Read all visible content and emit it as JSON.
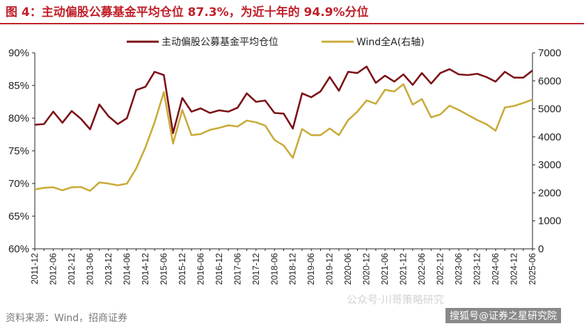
{
  "title": "图 4：主动偏股公募基金平均仓位 87.3%，为近十年的 94.9%分位",
  "source": "资料来源：Wind，招商证券",
  "watermark": {
    "channel": "公众号·川哥策略研究",
    "account": "搜狐号@证券之星研究院"
  },
  "colors": {
    "title": "#c0202a",
    "series_position": "#7b1218",
    "series_wind": "#c9ab3a"
  },
  "chart_data": {
    "type": "line",
    "categories": [
      "2011-12",
      "2012-06",
      "2012-12",
      "2013-06",
      "2013-12",
      "2014-06",
      "2014-12",
      "2015-06",
      "2015-12",
      "2016-06",
      "2016-12",
      "2017-06",
      "2017-12",
      "2018-06",
      "2018-12",
      "2019-06",
      "2019-12",
      "2020-06",
      "2020-12",
      "2021-06",
      "2021-12",
      "2022-06",
      "2022-12",
      "2023-06",
      "2023-12",
      "2024-06",
      "2024-12",
      "2025-06"
    ],
    "x": [
      "2011-12",
      "2012-03",
      "2012-06",
      "2012-09",
      "2012-12",
      "2013-03",
      "2013-06",
      "2013-09",
      "2013-12",
      "2014-03",
      "2014-06",
      "2014-09",
      "2014-12",
      "2015-03",
      "2015-06",
      "2015-09",
      "2015-12",
      "2016-03",
      "2016-06",
      "2016-09",
      "2016-12",
      "2017-03",
      "2017-06",
      "2017-09",
      "2017-12",
      "2018-03",
      "2018-06",
      "2018-09",
      "2018-12",
      "2019-03",
      "2019-06",
      "2019-09",
      "2019-12",
      "2020-03",
      "2020-06",
      "2020-09",
      "2020-12",
      "2021-03",
      "2021-06",
      "2021-09",
      "2021-12",
      "2022-03",
      "2022-06",
      "2022-09",
      "2022-12",
      "2023-03",
      "2023-06",
      "2023-09",
      "2023-12",
      "2024-03",
      "2024-06",
      "2024-09",
      "2024-12",
      "2025-03",
      "2025-06"
    ],
    "series": [
      {
        "name": "主动偏股公募基金平均仓位",
        "axis": "left",
        "values": [
          79.0,
          79.1,
          81.0,
          79.3,
          81.1,
          79.9,
          78.3,
          82.1,
          80.3,
          79.1,
          80.0,
          84.3,
          84.8,
          87.1,
          86.6,
          77.7,
          83.1,
          81.0,
          81.5,
          80.8,
          81.2,
          81.0,
          81.6,
          83.8,
          82.5,
          82.7,
          80.8,
          80.7,
          78.4,
          83.8,
          83.2,
          84.1,
          86.3,
          84.2,
          87.1,
          86.9,
          87.9,
          85.4,
          86.5,
          85.6,
          86.7,
          85.1,
          86.9,
          85.3,
          86.9,
          87.5,
          86.7,
          86.6,
          86.8,
          86.3,
          85.6,
          87.1,
          86.2,
          86.2,
          87.3
        ]
      },
      {
        "name": "Wind全A(右轴)",
        "axis": "right",
        "values": [
          2120,
          2180,
          2200,
          2090,
          2200,
          2210,
          2070,
          2370,
          2330,
          2270,
          2330,
          2870,
          3620,
          4520,
          5600,
          3760,
          4960,
          4060,
          4100,
          4250,
          4320,
          4410,
          4370,
          4580,
          4520,
          4400,
          3890,
          3690,
          3250,
          4280,
          4060,
          4060,
          4300,
          4060,
          4600,
          4900,
          5300,
          5180,
          5680,
          5620,
          5880,
          5150,
          5350,
          4700,
          4800,
          5110,
          4960,
          4780,
          4600,
          4450,
          4220,
          5050,
          5100,
          5210,
          5330
        ]
      }
    ],
    "y_left": {
      "ticks": [
        "60%",
        "65%",
        "70%",
        "75%",
        "80%",
        "85%",
        "90%"
      ],
      "ylim": [
        60,
        90
      ]
    },
    "y_right": {
      "ticks": [
        "0",
        "1000",
        "2000",
        "3000",
        "4000",
        "5000",
        "6000",
        "7000"
      ],
      "ylim": [
        0,
        7000
      ]
    },
    "grid": false,
    "legend": "top"
  }
}
